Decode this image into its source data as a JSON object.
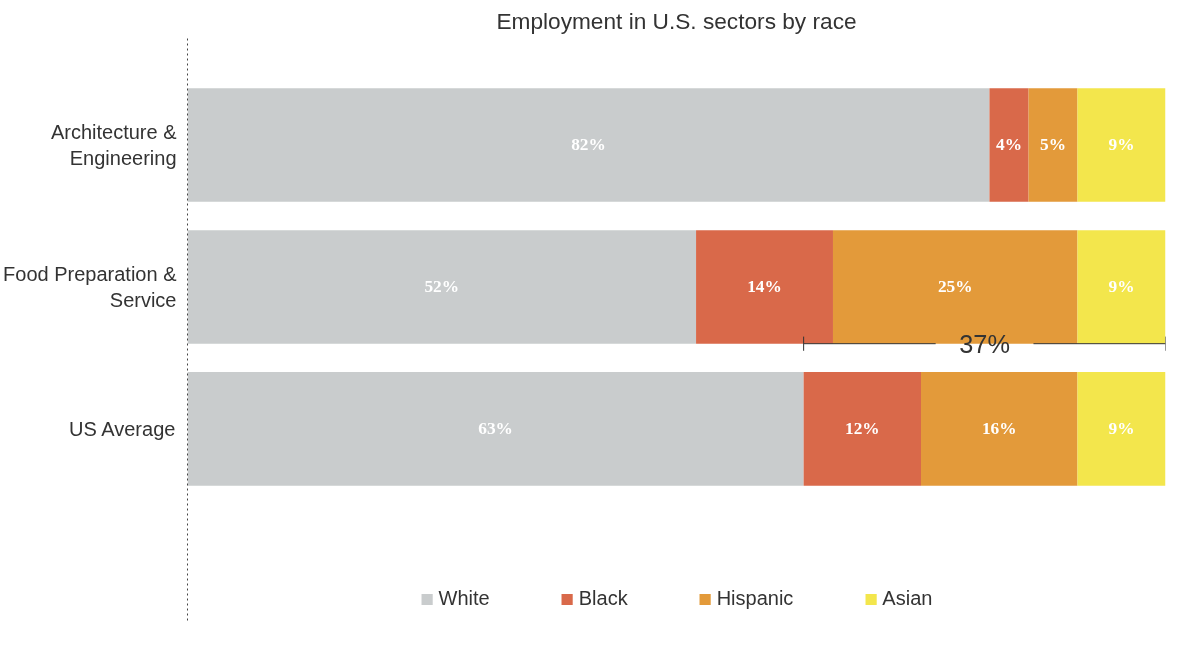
{
  "chart_data": {
    "type": "bar",
    "orientation": "horizontal",
    "stacked": true,
    "title": "Employment in U.S. sectors by race",
    "categories": [
      "Architecture & Engineering",
      "Food Preparation & Service",
      "US Average"
    ],
    "series": [
      {
        "name": "White",
        "color": "#c9cccd",
        "values": [
          82,
          52,
          63
        ],
        "value_labels": [
          "82%",
          "52%",
          "63%"
        ]
      },
      {
        "name": "Black",
        "color": "#d9694a",
        "values": [
          4,
          14,
          12
        ],
        "value_labels": [
          "4%",
          "14%",
          "12%"
        ]
      },
      {
        "name": "Hispanic",
        "color": "#e39a3a",
        "values": [
          5,
          25,
          16
        ],
        "value_labels": [
          "5%",
          "25%",
          "16%"
        ]
      },
      {
        "name": "Asian",
        "color": "#f3e64c",
        "values": [
          9,
          9,
          9
        ],
        "value_labels": [
          "9%",
          "9%",
          "9%"
        ]
      }
    ],
    "tick_labels": "y",
    "legend": "bottom",
    "grid": false,
    "annotations": [
      "37%"
    ]
  }
}
